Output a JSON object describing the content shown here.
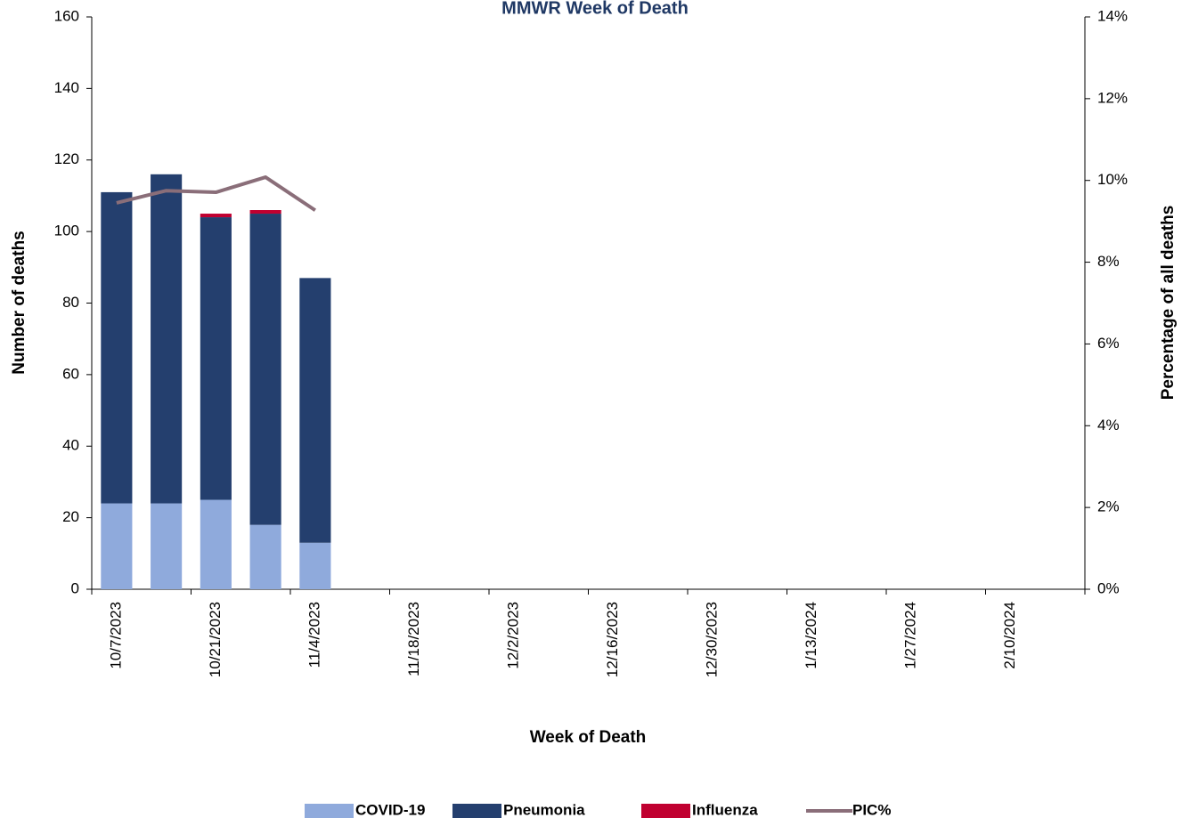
{
  "chart_data": {
    "type": "bar",
    "title": "MMWR Week of Death",
    "x_label": "Week of Death",
    "y_label": "Number of deaths",
    "y2_label": "Percentage of all deaths",
    "categories": [
      "10/7/2023",
      null,
      "10/21/2023",
      null,
      "11/4/2023",
      null,
      "11/18/2023",
      null,
      "12/2/2023",
      null,
      "12/16/2023",
      null,
      "12/30/2023",
      null,
      "1/13/2024",
      null,
      "1/27/2024",
      null,
      "2/10/2024",
      null
    ],
    "series": [
      {
        "name": "COVID-19",
        "color": "#8faadc",
        "stacked": true,
        "values": [
          24,
          24,
          25,
          18,
          13,
          null,
          null,
          null,
          null,
          null,
          null,
          null,
          null,
          null,
          null,
          null,
          null,
          null,
          null,
          null
        ]
      },
      {
        "name": "Pneumonia",
        "color": "#243f6e",
        "stacked": true,
        "values": [
          87,
          92,
          79,
          87,
          74,
          null,
          null,
          null,
          null,
          null,
          null,
          null,
          null,
          null,
          null,
          null,
          null,
          null,
          null,
          null
        ]
      },
      {
        "name": "Influenza",
        "color": "#c00030",
        "stacked": true,
        "values": [
          0,
          0,
          1,
          1,
          0,
          null,
          null,
          null,
          null,
          null,
          null,
          null,
          null,
          null,
          null,
          null,
          null,
          null,
          null,
          null
        ]
      },
      {
        "name": "PIC%",
        "color": "#8a6e79",
        "type": "line",
        "axis": "y2",
        "values": [
          9.45,
          9.75,
          9.71,
          10.08,
          9.27,
          null,
          null,
          null,
          null,
          null,
          null,
          null,
          null,
          null,
          null,
          null,
          null,
          null,
          null,
          null
        ]
      }
    ],
    "ylim": [
      0,
      160
    ],
    "yticks": [
      0,
      20,
      40,
      60,
      80,
      100,
      120,
      140,
      160
    ],
    "y2lim": [
      0,
      14
    ],
    "y2ticks": [
      {
        "value": 0,
        "label": "0%"
      },
      {
        "value": 2,
        "label": "2%"
      },
      {
        "value": 4,
        "label": "4%"
      },
      {
        "value": 6,
        "label": "6%"
      },
      {
        "value": 8,
        "label": "8%"
      },
      {
        "value": 10,
        "label": "10%"
      },
      {
        "value": 12,
        "label": "12%"
      },
      {
        "value": 14,
        "label": "14%"
      }
    ],
    "grid": false,
    "legend": "bottom"
  }
}
